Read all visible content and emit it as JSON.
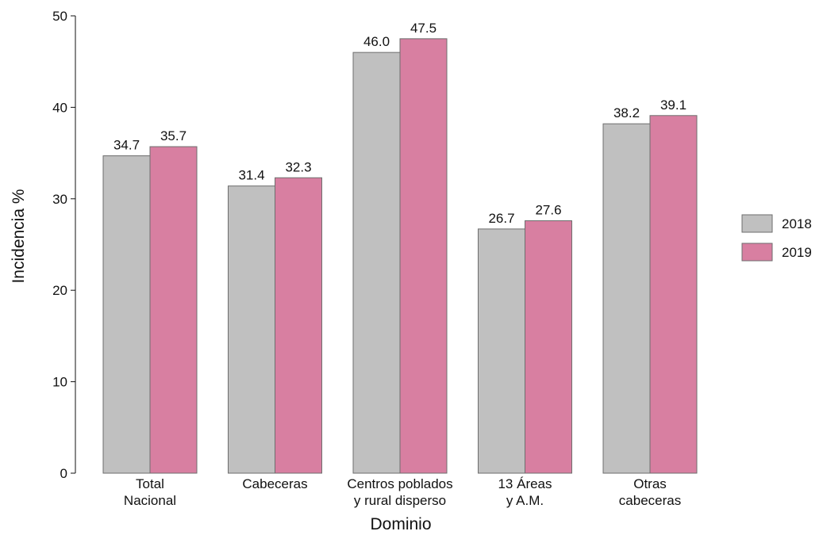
{
  "chart_data": {
    "type": "bar",
    "categories": [
      [
        "Total",
        "Nacional"
      ],
      [
        "Cabeceras",
        ""
      ],
      [
        "Centros poblados",
        "y rural disperso"
      ],
      [
        "13 Áreas",
        "y A.M."
      ],
      [
        "Otras",
        "cabeceras"
      ]
    ],
    "series": [
      {
        "name": "2018",
        "values": [
          34.7,
          31.4,
          46.0,
          26.7,
          38.2
        ],
        "labels": [
          "34.7",
          "31.4",
          "46.0",
          "26.7",
          "38.2"
        ],
        "color": "#c0c0c0"
      },
      {
        "name": "2019",
        "values": [
          35.7,
          32.3,
          47.5,
          27.6,
          39.1
        ],
        "labels": [
          "35.7",
          "32.3",
          "47.5",
          "27.6",
          "39.1"
        ],
        "color": "#d87fa1"
      }
    ],
    "xlabel": "Dominio",
    "ylabel": "Incidencia %",
    "ylim": [
      0,
      50
    ],
    "yticks": [
      0,
      10,
      20,
      30,
      40,
      50
    ],
    "grid": false,
    "legend_position": "right"
  }
}
